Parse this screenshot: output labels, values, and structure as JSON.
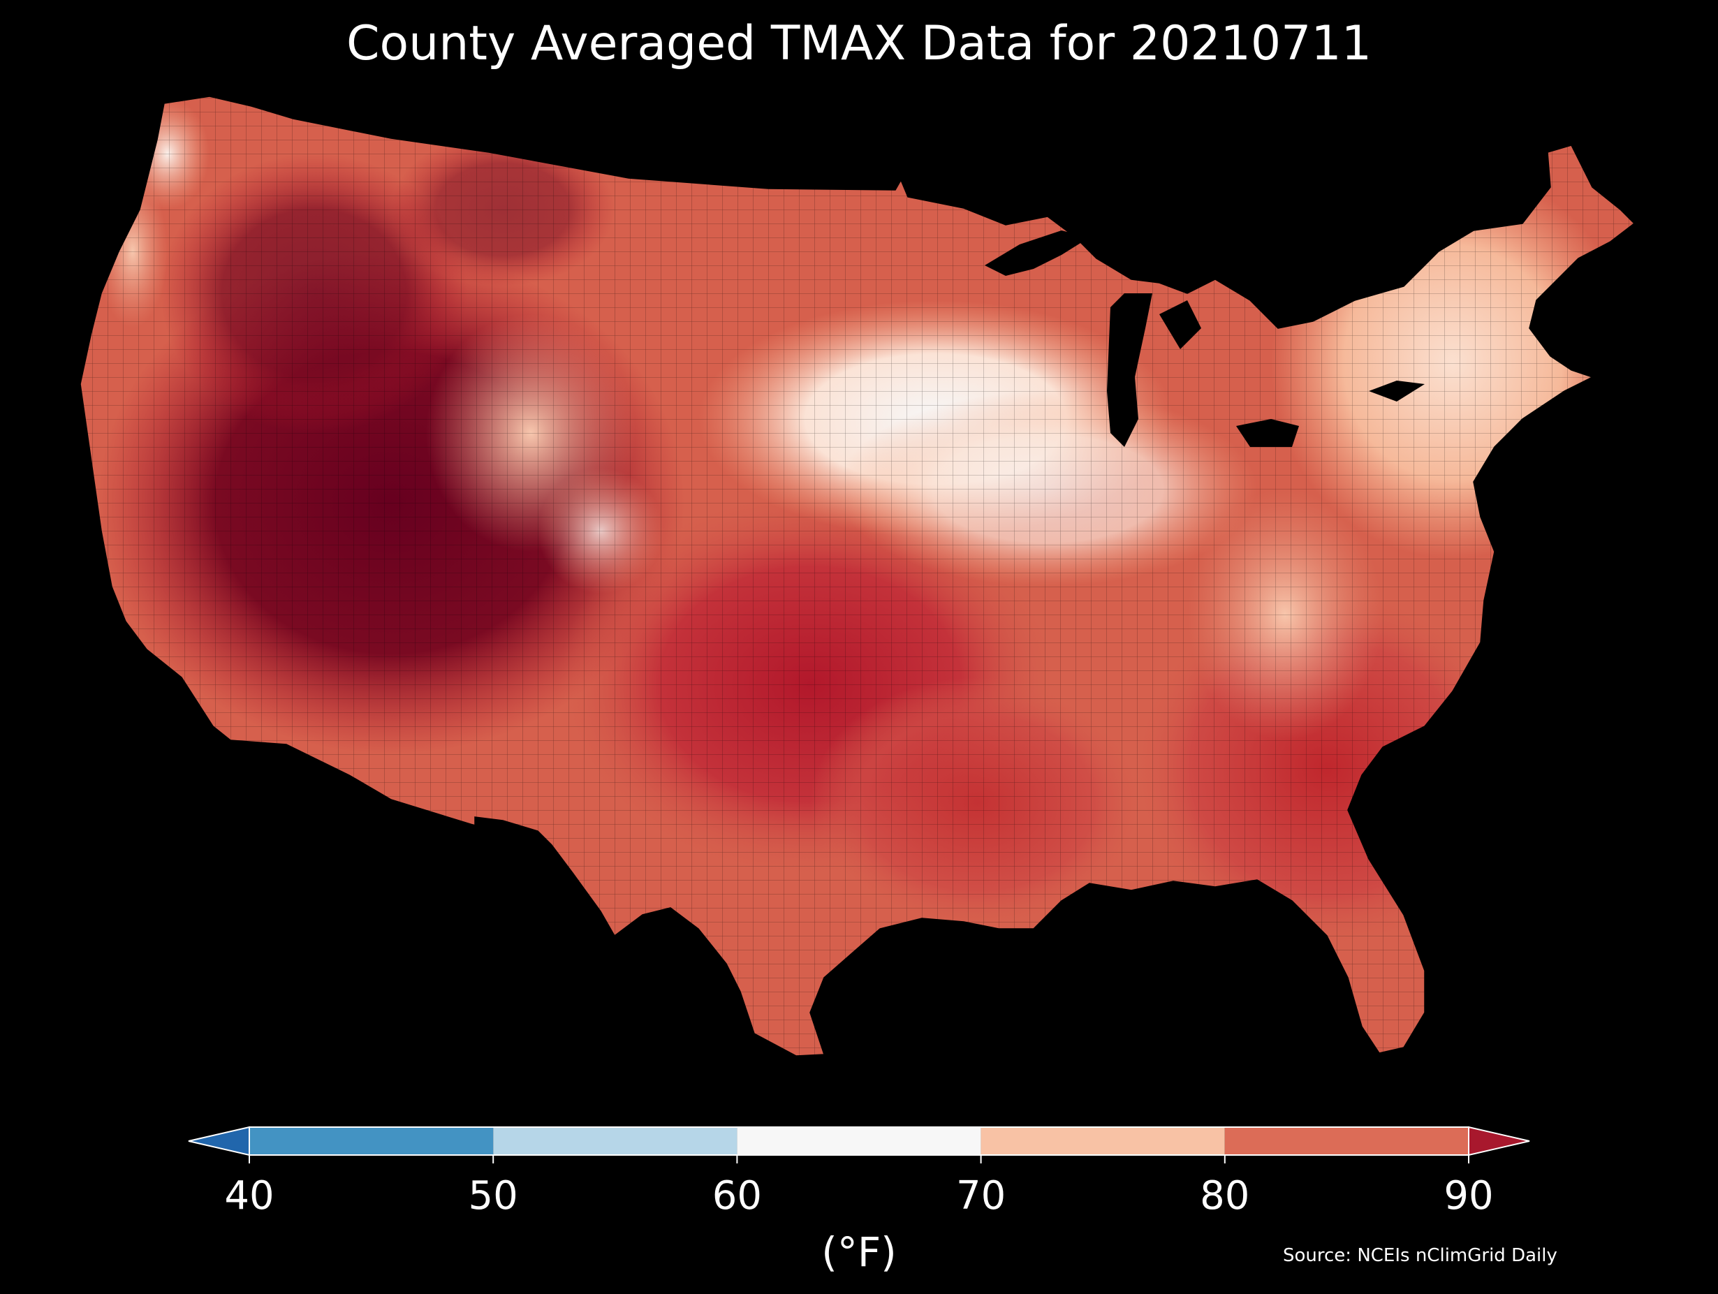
{
  "title": "County Averaged TMAX Data for 20210711",
  "colorbar": {
    "ticks": [
      "40",
      "50",
      "60",
      "70",
      "80",
      "90"
    ],
    "unit": "(°F)",
    "bins": [
      {
        "from": 40,
        "to": 50,
        "color": "#4393c3"
      },
      {
        "from": 50,
        "to": 60,
        "color": "#b6d6e8"
      },
      {
        "from": 60,
        "to": 70,
        "color": "#f7f7f7"
      },
      {
        "from": 70,
        "to": 80,
        "color": "#f8c2a5"
      },
      {
        "from": 80,
        "to": 90,
        "color": "#dc6c57"
      }
    ],
    "under_color": "#2166ac",
    "over_color": "#a8182d"
  },
  "source": "Source: NCEIs nClimGrid Daily",
  "map": {
    "region": "Contiguous United States counties",
    "background_color": "#000000",
    "water_color": "#000000",
    "county_border_color": "#000000"
  }
}
